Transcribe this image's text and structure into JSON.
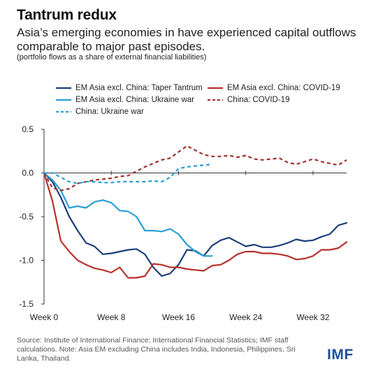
{
  "header": {
    "title": "Tantrum redux",
    "subtitle": "Asia’s emerging economies in have experienced capital outflows comparable to major past episodes.",
    "note": "(portfolio flows as a share of external financial liabilities)"
  },
  "footer": {
    "source": "Source: Institute of International Finance; International Financial Statistics; IMF staff calculations. Note: Asia EM excluding China includes India, Indonesia, Philippines, Sri Lanka, Thailand.",
    "logo": "IMF"
  },
  "colors": {
    "dark_blue": "#1d3f7a",
    "dark_red": "#b5322b",
    "light_blue": "#2a9fd6",
    "dashed_red": "#a0332d",
    "dashed_blue": "#2a9fd6",
    "axis": "#333333"
  },
  "chart_data": {
    "type": "line",
    "title": "",
    "xlabel": "",
    "ylabel": "",
    "xlim": [
      0,
      36
    ],
    "ylim": [
      -1.5,
      0.5
    ],
    "x_tick_values": [
      0,
      8,
      16,
      24,
      32
    ],
    "x_tick_labels": [
      "Week 0",
      "Week 8",
      "Week 16",
      "Week 24",
      "Week 32"
    ],
    "y_tick_values": [
      0.5,
      0.0,
      -0.5,
      -1.0,
      -1.5
    ],
    "y_tick_labels": [
      "0.5",
      "0.0",
      "-0.5",
      "-1.0",
      "-1.5"
    ],
    "grid": false,
    "legend_position": "top",
    "series": [
      {
        "name": "EM Asia excl. China: Taper Tantrum",
        "color": "#1d3f7a",
        "dash": false,
        "x": [
          0,
          1,
          2,
          3,
          4,
          5,
          6,
          7,
          8,
          9,
          10,
          11,
          12,
          13,
          14,
          15,
          16,
          17,
          18,
          19,
          20,
          21,
          22,
          23,
          24,
          25,
          26,
          27,
          28,
          29,
          30,
          31,
          32,
          33,
          34,
          35,
          36
        ],
        "y": [
          0,
          -0.1,
          -0.28,
          -0.5,
          -0.66,
          -0.8,
          -0.84,
          -0.93,
          -0.92,
          -0.9,
          -0.88,
          -0.87,
          -0.93,
          -1.08,
          -1.18,
          -1.15,
          -1.05,
          -0.88,
          -0.89,
          -0.95,
          -0.83,
          -0.77,
          -0.74,
          -0.79,
          -0.84,
          -0.82,
          -0.85,
          -0.85,
          -0.83,
          -0.8,
          -0.76,
          -0.78,
          -0.77,
          -0.73,
          -0.7,
          -0.6,
          -0.57
        ]
      },
      {
        "name": "EM Asia excl. China: COVID-19",
        "color": "#b5322b",
        "dash": false,
        "x": [
          0,
          1,
          2,
          3,
          4,
          5,
          6,
          7,
          8,
          9,
          10,
          11,
          12,
          13,
          14,
          15,
          16,
          17,
          18,
          19,
          20,
          21,
          22,
          23,
          24,
          25,
          26,
          27,
          28,
          29,
          30,
          31,
          32,
          33,
          34,
          35,
          36
        ],
        "y": [
          0,
          -0.32,
          -0.78,
          -0.9,
          -1.0,
          -1.05,
          -1.09,
          -1.11,
          -1.14,
          -1.08,
          -1.2,
          -1.2,
          -1.18,
          -1.04,
          -1.05,
          -1.08,
          -1.08,
          -1.1,
          -1.11,
          -1.12,
          -1.06,
          -1.05,
          -1.0,
          -0.93,
          -0.9,
          -0.9,
          -0.92,
          -0.92,
          -0.93,
          -0.95,
          -0.99,
          -0.98,
          -0.95,
          -0.88,
          -0.88,
          -0.86,
          -0.79
        ]
      },
      {
        "name": "EM Asia excl. China: Ukraine war",
        "color": "#2a9fd6",
        "dash": false,
        "x": [
          0,
          1,
          2,
          3,
          4,
          5,
          6,
          7,
          8,
          9,
          10,
          11,
          12,
          13,
          14,
          15,
          16,
          17,
          18,
          19,
          20
        ],
        "y": [
          0,
          -0.08,
          -0.2,
          -0.4,
          -0.38,
          -0.4,
          -0.33,
          -0.31,
          -0.34,
          -0.43,
          -0.44,
          -0.5,
          -0.66,
          -0.66,
          -0.67,
          -0.64,
          -0.7,
          -0.82,
          -0.9,
          -0.95,
          -0.95
        ]
      },
      {
        "name": "China: COVID-19",
        "color": "#a0332d",
        "dash": true,
        "x": [
          0,
          1,
          2,
          3,
          4,
          5,
          6,
          7,
          8,
          9,
          10,
          11,
          12,
          13,
          14,
          15,
          16,
          17,
          18,
          19,
          20,
          21,
          22,
          23,
          24,
          25,
          26,
          27,
          28,
          29,
          30,
          31,
          32,
          33,
          34,
          35,
          36
        ],
        "y": [
          0,
          -0.17,
          -0.2,
          -0.18,
          -0.12,
          -0.1,
          -0.08,
          -0.07,
          -0.06,
          -0.04,
          -0.03,
          0.02,
          0.07,
          0.11,
          0.15,
          0.17,
          0.24,
          0.31,
          0.26,
          0.21,
          0.19,
          0.19,
          0.2,
          0.18,
          0.2,
          0.16,
          0.15,
          0.16,
          0.17,
          0.12,
          0.1,
          0.13,
          0.16,
          0.13,
          0.11,
          0.09,
          0.15
        ]
      },
      {
        "name": "China: Ukraine war",
        "color": "#2a9fd6",
        "dash": true,
        "x": [
          0,
          1,
          2,
          3,
          4,
          5,
          6,
          7,
          8,
          9,
          10,
          11,
          12,
          13,
          14,
          15,
          16,
          17,
          18,
          19,
          20
        ],
        "y": [
          0,
          0,
          -0.05,
          -0.1,
          -0.12,
          -0.1,
          -0.1,
          -0.11,
          -0.11,
          -0.1,
          -0.1,
          -0.1,
          -0.1,
          -0.09,
          -0.1,
          -0.05,
          0.05,
          0.07,
          0.08,
          0.09,
          0.1
        ]
      }
    ]
  }
}
